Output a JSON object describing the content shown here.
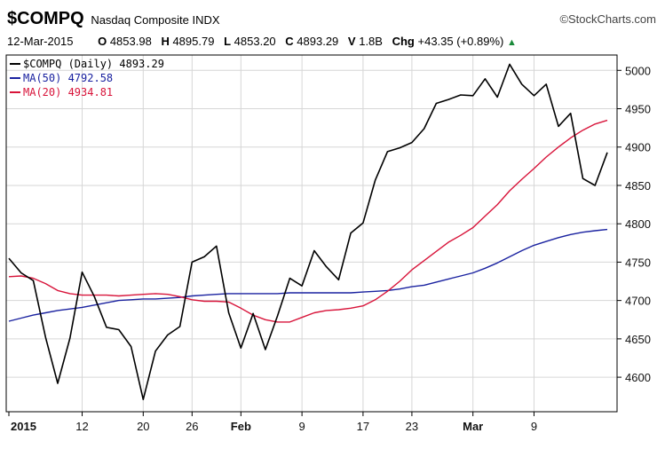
{
  "header": {
    "symbol": "$COMPQ",
    "instrument": "Nasdaq Composite INDX",
    "brand": "©StockCharts.com",
    "date": "12-Mar-2015",
    "open_label": "O",
    "open": "4853.98",
    "high_label": "H",
    "high": "4895.79",
    "low_label": "L",
    "low": "4853.20",
    "close_label": "C",
    "close": "4893.29",
    "volume_label": "V",
    "volume": "1.8B",
    "change_label": "Chg",
    "change": "+43.35 (+0.89%)",
    "change_icon": "up-triangle-icon"
  },
  "chart_data": {
    "type": "line",
    "ylim": [
      4555,
      5020
    ],
    "yticks": [
      4600,
      4650,
      4700,
      4750,
      4800,
      4850,
      4900,
      4950,
      5000
    ],
    "x_label_positions": [
      0,
      6,
      11,
      15,
      19,
      24,
      29,
      33,
      38,
      43
    ],
    "x_labels": [
      "2015",
      "12",
      "20",
      "26",
      "Feb",
      "9",
      "17",
      "23",
      "Mar",
      "9"
    ],
    "x_labels_bold": [
      true,
      false,
      false,
      false,
      true,
      false,
      false,
      false,
      true,
      false
    ],
    "grid": true,
    "legend_position": "top-left",
    "series": [
      {
        "name": "$COMPQ (Daily) 4893.29",
        "color": "#000000",
        "values": [
          4755,
          4736,
          4726,
          4652,
          4592,
          4651,
          4737,
          4705,
          4665,
          4662,
          4640,
          4571,
          4634,
          4655,
          4666,
          4750,
          4757,
          4771,
          4684,
          4638,
          4683,
          4636,
          4680,
          4729,
          4719,
          4765,
          4744,
          4727,
          4788,
          4801,
          4857,
          4894,
          4899,
          4906,
          4924,
          4957,
          4962,
          4968,
          4967,
          4989,
          4965,
          5008,
          4982,
          4967,
          4982,
          4927,
          4944,
          4859,
          4850,
          4893
        ]
      },
      {
        "name": "MA(50) 4792.58",
        "color": "#1a22a0",
        "values": [
          4673,
          4677,
          4681,
          4684,
          4687,
          4689,
          4691,
          4694,
          4697,
          4700,
          4701,
          4702,
          4702,
          4703,
          4704,
          4706,
          4707,
          4708,
          4709,
          4709,
          4709,
          4709,
          4709,
          4710,
          4710,
          4710,
          4710,
          4710,
          4710,
          4711,
          4712,
          4713,
          4715,
          4718,
          4720,
          4724,
          4728,
          4732,
          4736,
          4742,
          4749,
          4757,
          4765,
          4772,
          4777,
          4782,
          4786,
          4789,
          4791,
          4792.58
        ]
      },
      {
        "name": "MA(20) 4934.81",
        "color": "#d8143a",
        "values": [
          4731,
          4732,
          4729,
          4722,
          4713,
          4709,
          4707,
          4707,
          4707,
          4706,
          4707,
          4708,
          4709,
          4708,
          4705,
          4701,
          4699,
          4699,
          4698,
          4690,
          4681,
          4675,
          4672,
          4672,
          4678,
          4684,
          4687,
          4688,
          4690,
          4693,
          4701,
          4712,
          4725,
          4740,
          4752,
          4764,
          4776,
          4785,
          4795,
          4810,
          4825,
          4843,
          4858,
          4872,
          4887,
          4900,
          4912,
          4922,
          4930,
          4934.81
        ]
      }
    ]
  }
}
